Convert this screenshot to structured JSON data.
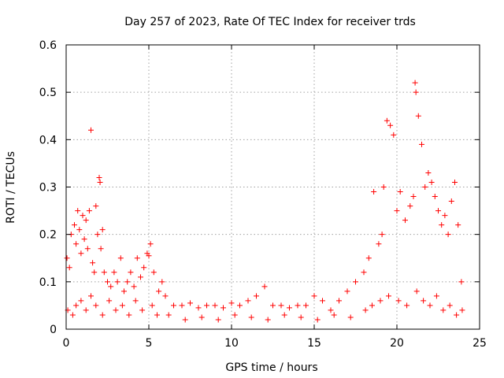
{
  "chart_data": {
    "type": "scatter",
    "title": "Day 257 of 2023, Rate Of TEC Index for receiver trds",
    "xlabel": "GPS time / hours",
    "ylabel": "ROTI / TECUs",
    "xlim": [
      0,
      25
    ],
    "ylim": [
      0,
      0.6
    ],
    "x_ticks": [
      0,
      5,
      10,
      15,
      20,
      25
    ],
    "x_tick_labels": [
      "0",
      "5",
      "10",
      "15",
      "20",
      "25"
    ],
    "y_ticks": [
      0,
      0.1,
      0.2,
      0.3,
      0.4,
      0.5,
      0.6
    ],
    "y_tick_labels": [
      "0",
      "0.1",
      "0.2",
      "0.3",
      "0.4",
      "0.5",
      "0.6"
    ],
    "grid": true,
    "marker": "+",
    "color": "#ff0000",
    "series": [
      {
        "x": [
          0.05,
          0.2,
          0.3,
          0.5,
          0.6,
          0.7,
          0.8,
          0.9,
          1.0,
          1.1,
          1.2,
          1.3,
          1.4,
          1.5,
          1.6,
          1.7,
          1.8,
          1.9,
          2.0,
          2.05,
          2.1,
          2.2,
          2.3,
          2.5,
          2.7,
          2.9,
          3.1,
          3.3,
          3.5,
          3.7,
          3.9,
          4.1,
          4.3,
          4.5,
          4.7,
          4.9,
          5.0,
          5.1,
          5.3,
          5.6,
          5.8,
          6.0,
          6.5,
          7.0,
          7.5,
          8.0,
          8.5,
          9.0,
          9.5,
          10.0,
          10.5,
          11.0,
          11.5,
          12.0,
          12.5,
          13.0,
          13.5,
          14.0,
          14.5,
          15.0,
          15.5,
          16.0,
          16.5,
          17.0,
          17.5,
          18.0,
          18.3,
          18.6,
          18.9,
          19.1,
          19.2,
          19.4,
          19.6,
          19.8,
          20.0,
          20.2,
          20.5,
          20.8,
          21.0,
          21.1,
          21.15,
          21.3,
          21.5,
          21.7,
          21.9,
          22.1,
          22.3,
          22.5,
          22.7,
          22.9,
          23.1,
          23.3,
          23.5,
          23.7,
          23.9,
          0.1,
          0.4,
          0.6,
          0.9,
          1.2,
          1.5,
          1.8,
          2.2,
          2.6,
          3.0,
          3.4,
          3.8,
          4.2,
          4.6,
          5.2,
          5.5,
          6.2,
          7.2,
          8.2,
          9.2,
          10.2,
          11.2,
          12.2,
          13.2,
          14.2,
          15.2,
          16.2,
          17.2,
          18.1,
          18.5,
          19.0,
          19.5,
          20.1,
          20.6,
          21.2,
          21.6,
          22.0,
          22.4,
          22.8,
          23.2,
          23.6,
          23.95
        ],
        "y": [
          0.15,
          0.13,
          0.2,
          0.22,
          0.18,
          0.25,
          0.21,
          0.16,
          0.24,
          0.19,
          0.23,
          0.17,
          0.25,
          0.42,
          0.14,
          0.12,
          0.26,
          0.2,
          0.32,
          0.31,
          0.17,
          0.21,
          0.12,
          0.1,
          0.09,
          0.12,
          0.1,
          0.15,
          0.08,
          0.1,
          0.12,
          0.09,
          0.15,
          0.11,
          0.13,
          0.16,
          0.155,
          0.18,
          0.12,
          0.08,
          0.1,
          0.07,
          0.05,
          0.05,
          0.055,
          0.045,
          0.05,
          0.05,
          0.045,
          0.055,
          0.05,
          0.06,
          0.07,
          0.09,
          0.05,
          0.05,
          0.045,
          0.05,
          0.05,
          0.07,
          0.06,
          0.04,
          0.06,
          0.08,
          0.1,
          0.12,
          0.15,
          0.29,
          0.18,
          0.2,
          0.3,
          0.44,
          0.43,
          0.41,
          0.25,
          0.29,
          0.23,
          0.26,
          0.28,
          0.52,
          0.5,
          0.45,
          0.39,
          0.3,
          0.33,
          0.31,
          0.28,
          0.25,
          0.22,
          0.24,
          0.2,
          0.27,
          0.31,
          0.22,
          0.1,
          0.04,
          0.03,
          0.05,
          0.06,
          0.04,
          0.07,
          0.05,
          0.03,
          0.06,
          0.04,
          0.05,
          0.03,
          0.06,
          0.04,
          0.05,
          0.03,
          0.03,
          0.02,
          0.025,
          0.02,
          0.03,
          0.025,
          0.02,
          0.03,
          0.025,
          0.02,
          0.03,
          0.025,
          0.04,
          0.05,
          0.06,
          0.07,
          0.06,
          0.05,
          0.08,
          0.06,
          0.05,
          0.07,
          0.04,
          0.05,
          0.03,
          0.04
        ]
      }
    ]
  }
}
